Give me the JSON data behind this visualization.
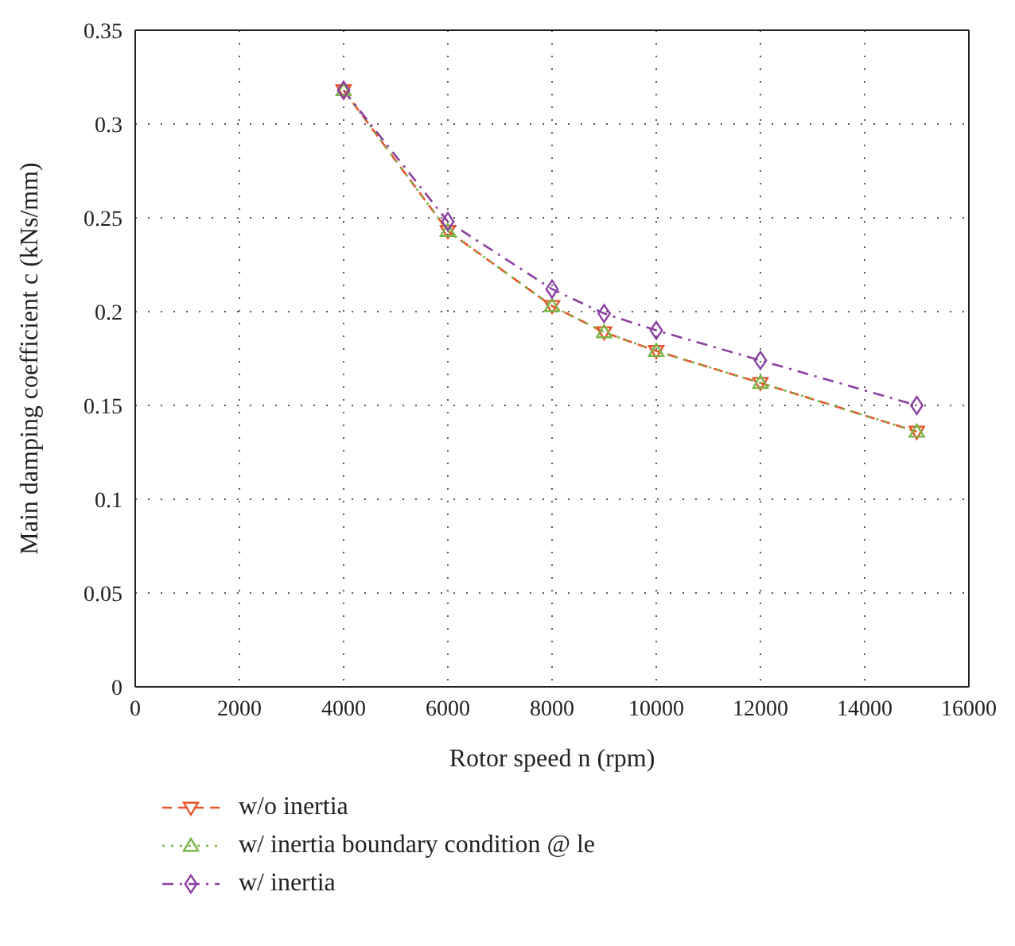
{
  "chart_data": {
    "type": "line",
    "xlabel": "Rotor speed n (rpm)",
    "ylabel": "Main damping coefficient c (kNs/mm)",
    "x": [
      4000,
      6000,
      8000,
      9000,
      10000,
      12000,
      15000
    ],
    "series": [
      {
        "name": "w/o inertia",
        "color": "#e8552a",
        "values": [
          0.318,
          0.243,
          0.203,
          0.189,
          0.179,
          0.162,
          0.136
        ],
        "marker": "triangle-down",
        "line_style": "dashed"
      },
      {
        "name": "w/ inertia boundary condition @ le",
        "color": "#7ab648",
        "values": [
          0.318,
          0.243,
          0.203,
          0.189,
          0.179,
          0.162,
          0.136
        ],
        "marker": "triangle",
        "line_style": "dotted"
      },
      {
        "name": "w/ inertia",
        "color": "#8a3ea0",
        "values": [
          0.318,
          0.248,
          0.212,
          0.199,
          0.19,
          0.174,
          0.15
        ],
        "marker": "diamond",
        "line_style": "dashdot"
      }
    ],
    "xlim": [
      0,
      16000
    ],
    "xticks": [
      0,
      2000,
      4000,
      6000,
      8000,
      10000,
      12000,
      14000,
      16000
    ],
    "ylim": [
      0,
      0.35
    ],
    "yticks": [
      0,
      0.05,
      0.1,
      0.15,
      0.2,
      0.25,
      0.3,
      0.35
    ],
    "grid": true,
    "legend": "bottom left"
  }
}
